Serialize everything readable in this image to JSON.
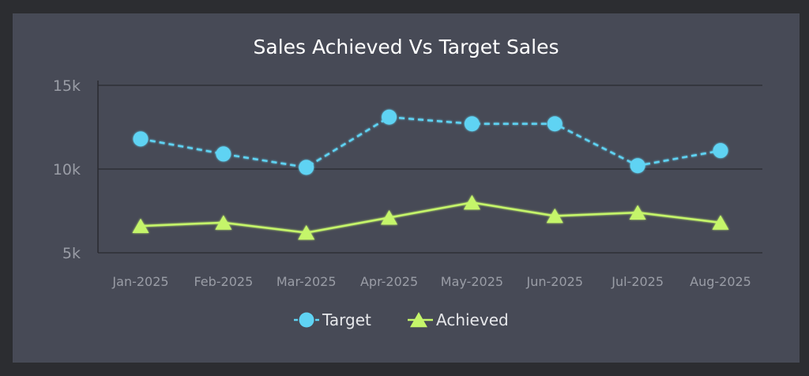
{
  "chart_data": {
    "type": "line",
    "title": "Sales Achieved Vs Target Sales",
    "xlabel": "",
    "ylabel": "",
    "categories": [
      "Jan-2025",
      "Feb-2025",
      "Mar-2025",
      "Apr-2025",
      "May-2025",
      "Jun-2025",
      "Jul-2025",
      "Aug-2025"
    ],
    "yticks": [
      {
        "value": 5000,
        "label": "5k"
      },
      {
        "value": 10000,
        "label": "10k"
      },
      {
        "value": 15000,
        "label": "15k"
      }
    ],
    "ylim": [
      5000,
      15000
    ],
    "grid": true,
    "legend_position": "bottom",
    "series": [
      {
        "name": "Target",
        "values": [
          11800,
          10900,
          10100,
          13100,
          12700,
          12700,
          10200,
          11100
        ],
        "color": "#5fd3f3",
        "line_style": "dashed",
        "marker": "circle"
      },
      {
        "name": "Achieved",
        "values": [
          6600,
          6800,
          6200,
          7100,
          8000,
          7200,
          7400,
          6800
        ],
        "color": "#c5f56a",
        "line_style": "solid",
        "marker": "triangle"
      }
    ]
  }
}
